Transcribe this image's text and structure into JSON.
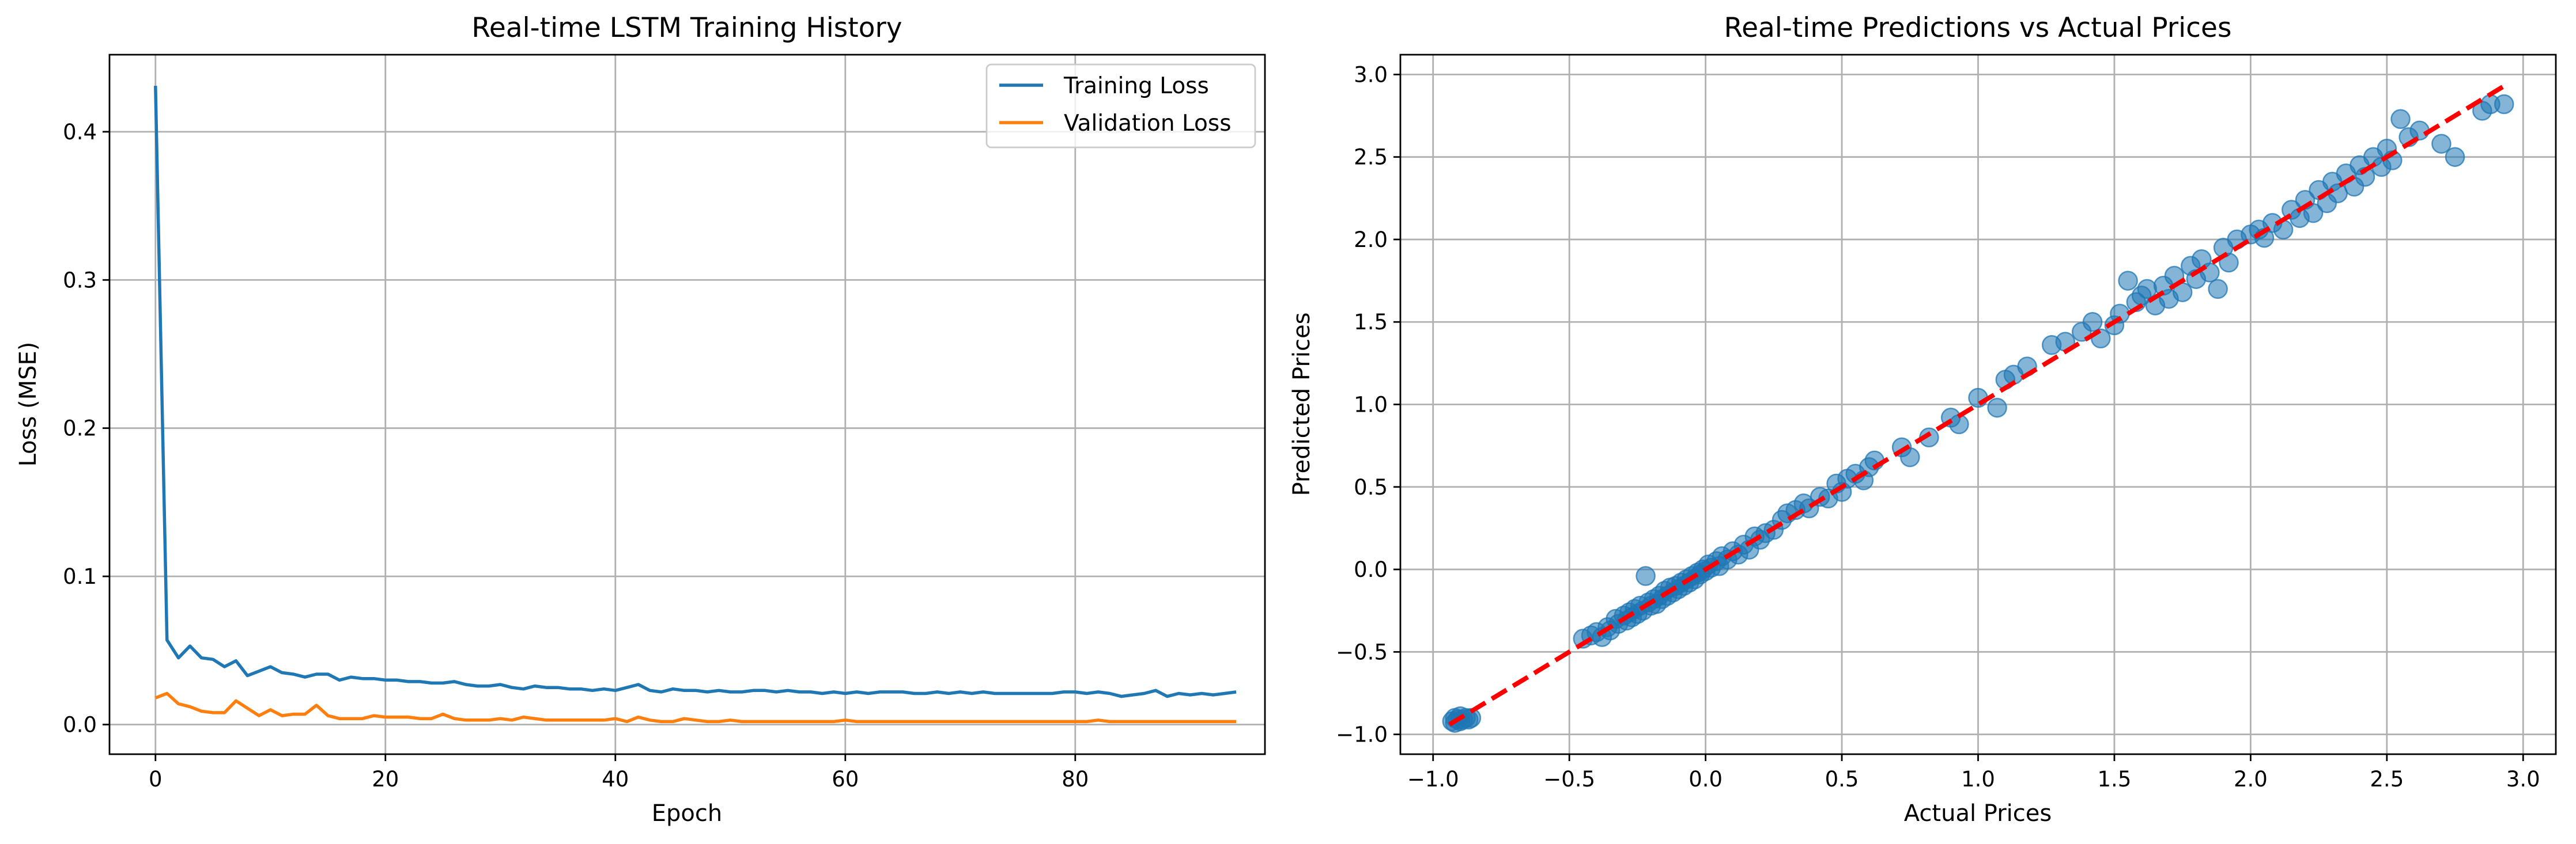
{
  "colors": {
    "training": "#1f77b4",
    "validation": "#ff7f0e",
    "ideal_line": "#ff0000",
    "scatter": "#1f77b4",
    "grid": "#b0b0b0"
  },
  "chart_data": [
    {
      "type": "line",
      "title": "Real-time LSTM Training History",
      "xlabel": "Epoch",
      "ylabel": "Loss (MSE)",
      "xlim": [
        -4,
        96.5
      ],
      "ylim": [
        -0.02,
        0.452
      ],
      "xticks": [
        0,
        20,
        40,
        60,
        80
      ],
      "yticks": [
        0.0,
        0.1,
        0.2,
        0.3,
        0.4
      ],
      "grid": true,
      "legend": "top-right",
      "series": [
        {
          "name": "Training Loss",
          "color": "#1f77b4",
          "values": [
            0.431,
            0.057,
            0.045,
            0.053,
            0.045,
            0.044,
            0.039,
            0.043,
            0.033,
            0.036,
            0.039,
            0.035,
            0.034,
            0.032,
            0.034,
            0.034,
            0.03,
            0.032,
            0.031,
            0.031,
            0.03,
            0.03,
            0.029,
            0.029,
            0.028,
            0.028,
            0.029,
            0.027,
            0.026,
            0.026,
            0.027,
            0.025,
            0.024,
            0.026,
            0.025,
            0.025,
            0.024,
            0.024,
            0.023,
            0.024,
            0.023,
            0.025,
            0.027,
            0.023,
            0.022,
            0.024,
            0.023,
            0.023,
            0.022,
            0.023,
            0.022,
            0.022,
            0.023,
            0.023,
            0.022,
            0.023,
            0.022,
            0.022,
            0.021,
            0.022,
            0.021,
            0.022,
            0.021,
            0.022,
            0.022,
            0.022,
            0.021,
            0.021,
            0.022,
            0.021,
            0.022,
            0.021,
            0.022,
            0.021,
            0.021,
            0.021,
            0.021,
            0.021,
            0.021,
            0.022,
            0.022,
            0.021,
            0.022,
            0.021,
            0.019,
            0.02,
            0.021,
            0.023,
            0.019,
            0.021,
            0.02,
            0.021,
            0.02,
            0.021,
            0.022
          ]
        },
        {
          "name": "Validation Loss",
          "color": "#ff7f0e",
          "values": [
            0.018,
            0.021,
            0.014,
            0.012,
            0.009,
            0.008,
            0.008,
            0.016,
            0.011,
            0.006,
            0.01,
            0.006,
            0.007,
            0.007,
            0.013,
            0.006,
            0.004,
            0.004,
            0.004,
            0.006,
            0.005,
            0.005,
            0.005,
            0.004,
            0.004,
            0.007,
            0.004,
            0.003,
            0.003,
            0.003,
            0.004,
            0.003,
            0.005,
            0.004,
            0.003,
            0.003,
            0.003,
            0.003,
            0.003,
            0.003,
            0.004,
            0.002,
            0.005,
            0.003,
            0.002,
            0.002,
            0.004,
            0.003,
            0.002,
            0.002,
            0.003,
            0.002,
            0.002,
            0.002,
            0.002,
            0.002,
            0.002,
            0.002,
            0.002,
            0.002,
            0.003,
            0.002,
            0.002,
            0.002,
            0.002,
            0.002,
            0.002,
            0.002,
            0.002,
            0.002,
            0.002,
            0.002,
            0.002,
            0.002,
            0.002,
            0.002,
            0.002,
            0.002,
            0.002,
            0.002,
            0.002,
            0.002,
            0.003,
            0.002,
            0.002,
            0.002,
            0.002,
            0.002,
            0.002,
            0.002,
            0.002,
            0.002,
            0.002,
            0.002,
            0.002
          ]
        }
      ]
    },
    {
      "type": "scatter",
      "title": "Real-time Predictions vs Actual Prices",
      "xlabel": "Actual Prices",
      "ylabel": "Predicted Prices",
      "xlim": [
        -1.12,
        3.12
      ],
      "ylim": [
        -1.12,
        3.12
      ],
      "xticks": [
        -1.0,
        -0.5,
        0.0,
        0.5,
        1.0,
        1.5,
        2.0,
        2.5,
        3.0
      ],
      "yticks": [
        -1.0,
        -0.5,
        0.0,
        0.5,
        1.0,
        1.5,
        2.0,
        2.5,
        3.0
      ],
      "grid": true,
      "reference_line": {
        "from": [
          -0.94,
          -0.94
        ],
        "to": [
          2.94,
          2.94
        ],
        "style": "dashed",
        "color": "#ff0000"
      },
      "points": [
        [
          -0.93,
          -0.92
        ],
        [
          -0.92,
          -0.93
        ],
        [
          -0.91,
          -0.91
        ],
        [
          -0.9,
          -0.92
        ],
        [
          -0.89,
          -0.91
        ],
        [
          -0.88,
          -0.9
        ],
        [
          -0.87,
          -0.91
        ],
        [
          -0.92,
          -0.9
        ],
        [
          -0.9,
          -0.89
        ],
        [
          -0.86,
          -0.9
        ],
        [
          -0.45,
          -0.42
        ],
        [
          -0.42,
          -0.4
        ],
        [
          -0.4,
          -0.38
        ],
        [
          -0.38,
          -0.41
        ],
        [
          -0.36,
          -0.35
        ],
        [
          -0.35,
          -0.37
        ],
        [
          -0.33,
          -0.3
        ],
        [
          -0.32,
          -0.33
        ],
        [
          -0.3,
          -0.28
        ],
        [
          -0.29,
          -0.31
        ],
        [
          -0.28,
          -0.26
        ],
        [
          -0.27,
          -0.29
        ],
        [
          -0.26,
          -0.24
        ],
        [
          -0.25,
          -0.27
        ],
        [
          -0.24,
          -0.22
        ],
        [
          -0.23,
          -0.25
        ],
        [
          -0.22,
          -0.04
        ],
        [
          -0.21,
          -0.2
        ],
        [
          -0.2,
          -0.22
        ],
        [
          -0.19,
          -0.18
        ],
        [
          -0.18,
          -0.21
        ],
        [
          -0.17,
          -0.16
        ],
        [
          -0.16,
          -0.18
        ],
        [
          -0.15,
          -0.13
        ],
        [
          -0.14,
          -0.16
        ],
        [
          -0.13,
          -0.11
        ],
        [
          -0.12,
          -0.14
        ],
        [
          -0.11,
          -0.1
        ],
        [
          -0.1,
          -0.12
        ],
        [
          -0.09,
          -0.08
        ],
        [
          -0.08,
          -0.1
        ],
        [
          -0.07,
          -0.06
        ],
        [
          -0.06,
          -0.08
        ],
        [
          -0.05,
          -0.04
        ],
        [
          -0.04,
          -0.06
        ],
        [
          -0.03,
          -0.02
        ],
        [
          -0.02,
          -0.03
        ],
        [
          -0.01,
          0.0
        ],
        [
          0.0,
          -0.01
        ],
        [
          0.01,
          0.03
        ],
        [
          0.02,
          0.01
        ],
        [
          0.04,
          0.05
        ],
        [
          0.05,
          0.02
        ],
        [
          0.06,
          0.08
        ],
        [
          0.08,
          0.06
        ],
        [
          0.1,
          0.11
        ],
        [
          0.12,
          0.09
        ],
        [
          0.14,
          0.15
        ],
        [
          0.16,
          0.12
        ],
        [
          0.18,
          0.2
        ],
        [
          0.2,
          0.18
        ],
        [
          0.22,
          0.22
        ],
        [
          0.25,
          0.24
        ],
        [
          0.28,
          0.3
        ],
        [
          0.3,
          0.34
        ],
        [
          0.33,
          0.36
        ],
        [
          0.36,
          0.4
        ],
        [
          0.38,
          0.37
        ],
        [
          0.42,
          0.44
        ],
        [
          0.45,
          0.43
        ],
        [
          0.48,
          0.52
        ],
        [
          0.5,
          0.47
        ],
        [
          0.52,
          0.55
        ],
        [
          0.55,
          0.58
        ],
        [
          0.58,
          0.54
        ],
        [
          0.6,
          0.62
        ],
        [
          0.62,
          0.66
        ],
        [
          0.72,
          0.74
        ],
        [
          0.75,
          0.68
        ],
        [
          0.82,
          0.8
        ],
        [
          0.9,
          0.92
        ],
        [
          0.93,
          0.88
        ],
        [
          1.0,
          1.04
        ],
        [
          1.07,
          0.98
        ],
        [
          1.1,
          1.15
        ],
        [
          1.13,
          1.18
        ],
        [
          1.18,
          1.23
        ],
        [
          1.27,
          1.36
        ],
        [
          1.32,
          1.38
        ],
        [
          1.38,
          1.44
        ],
        [
          1.42,
          1.5
        ],
        [
          1.45,
          1.4
        ],
        [
          1.5,
          1.48
        ],
        [
          1.52,
          1.55
        ],
        [
          1.55,
          1.75
        ],
        [
          1.58,
          1.62
        ],
        [
          1.6,
          1.66
        ],
        [
          1.62,
          1.7
        ],
        [
          1.65,
          1.6
        ],
        [
          1.68,
          1.72
        ],
        [
          1.7,
          1.64
        ],
        [
          1.72,
          1.78
        ],
        [
          1.75,
          1.68
        ],
        [
          1.78,
          1.84
        ],
        [
          1.8,
          1.76
        ],
        [
          1.82,
          1.88
        ],
        [
          1.85,
          1.8
        ],
        [
          1.88,
          1.7
        ],
        [
          1.9,
          1.95
        ],
        [
          1.92,
          1.86
        ],
        [
          1.95,
          2.0
        ],
        [
          2.0,
          2.03
        ],
        [
          2.03,
          2.06
        ],
        [
          2.05,
          2.01
        ],
        [
          2.08,
          2.1
        ],
        [
          2.12,
          2.06
        ],
        [
          2.15,
          2.18
        ],
        [
          2.18,
          2.13
        ],
        [
          2.2,
          2.24
        ],
        [
          2.23,
          2.16
        ],
        [
          2.25,
          2.3
        ],
        [
          2.28,
          2.22
        ],
        [
          2.3,
          2.35
        ],
        [
          2.32,
          2.28
        ],
        [
          2.35,
          2.4
        ],
        [
          2.38,
          2.32
        ],
        [
          2.4,
          2.45
        ],
        [
          2.42,
          2.38
        ],
        [
          2.45,
          2.5
        ],
        [
          2.48,
          2.44
        ],
        [
          2.5,
          2.55
        ],
        [
          2.52,
          2.48
        ],
        [
          2.55,
          2.73
        ],
        [
          2.58,
          2.62
        ],
        [
          2.62,
          2.66
        ],
        [
          2.7,
          2.58
        ],
        [
          2.75,
          2.5
        ],
        [
          2.85,
          2.78
        ],
        [
          2.88,
          2.82
        ],
        [
          2.93,
          2.82
        ]
      ]
    }
  ]
}
